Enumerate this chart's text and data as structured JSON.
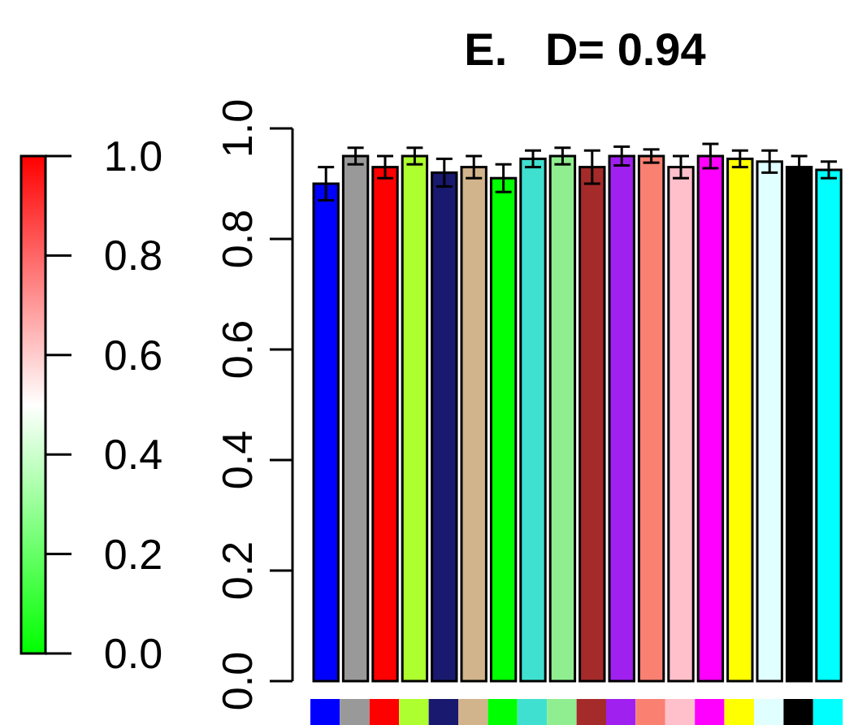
{
  "chart_data": {
    "type": "bar",
    "title": "E.   D= 0.94",
    "categories": [
      null,
      null,
      null,
      null,
      null,
      null,
      null,
      null,
      null,
      null,
      null,
      null,
      null,
      null,
      null,
      null,
      null,
      null
    ],
    "values": [
      0.9,
      0.95,
      0.93,
      0.95,
      0.92,
      0.93,
      0.91,
      0.945,
      0.95,
      0.93,
      0.95,
      0.95,
      0.93,
      0.95,
      0.945,
      0.94,
      0.93,
      0.925
    ],
    "errors": [
      0.03,
      0.015,
      0.02,
      0.015,
      0.025,
      0.02,
      0.025,
      0.015,
      0.015,
      0.03,
      0.017,
      0.012,
      0.02,
      0.022,
      0.015,
      0.02,
      0.02,
      0.015
    ],
    "colors": [
      "#0000ff",
      "#999999",
      "#ff0000",
      "#adff2f",
      "#191970",
      "#d2b48c",
      "#00ff00",
      "#40e0d0",
      "#90ee90",
      "#a52a2a",
      "#a020f0",
      "#fa8072",
      "#ffc0cb",
      "#ff00ff",
      "#ffff00",
      "#e0ffff",
      "#000000",
      "#00ffff"
    ],
    "ylim": [
      0,
      1
    ],
    "yticks": [
      {
        "value": 0,
        "label": "0.0"
      },
      0.2,
      0.4,
      0.6,
      0.8,
      {
        "value": 1,
        "label": "1.0"
      }
    ],
    "clim": [
      0,
      1
    ],
    "cticks": [
      {
        "value": 0,
        "label": "0.0"
      },
      0.2,
      0.4,
      0.6,
      0.8,
      {
        "value": 1,
        "label": "1.0"
      }
    ],
    "grid": false
  }
}
